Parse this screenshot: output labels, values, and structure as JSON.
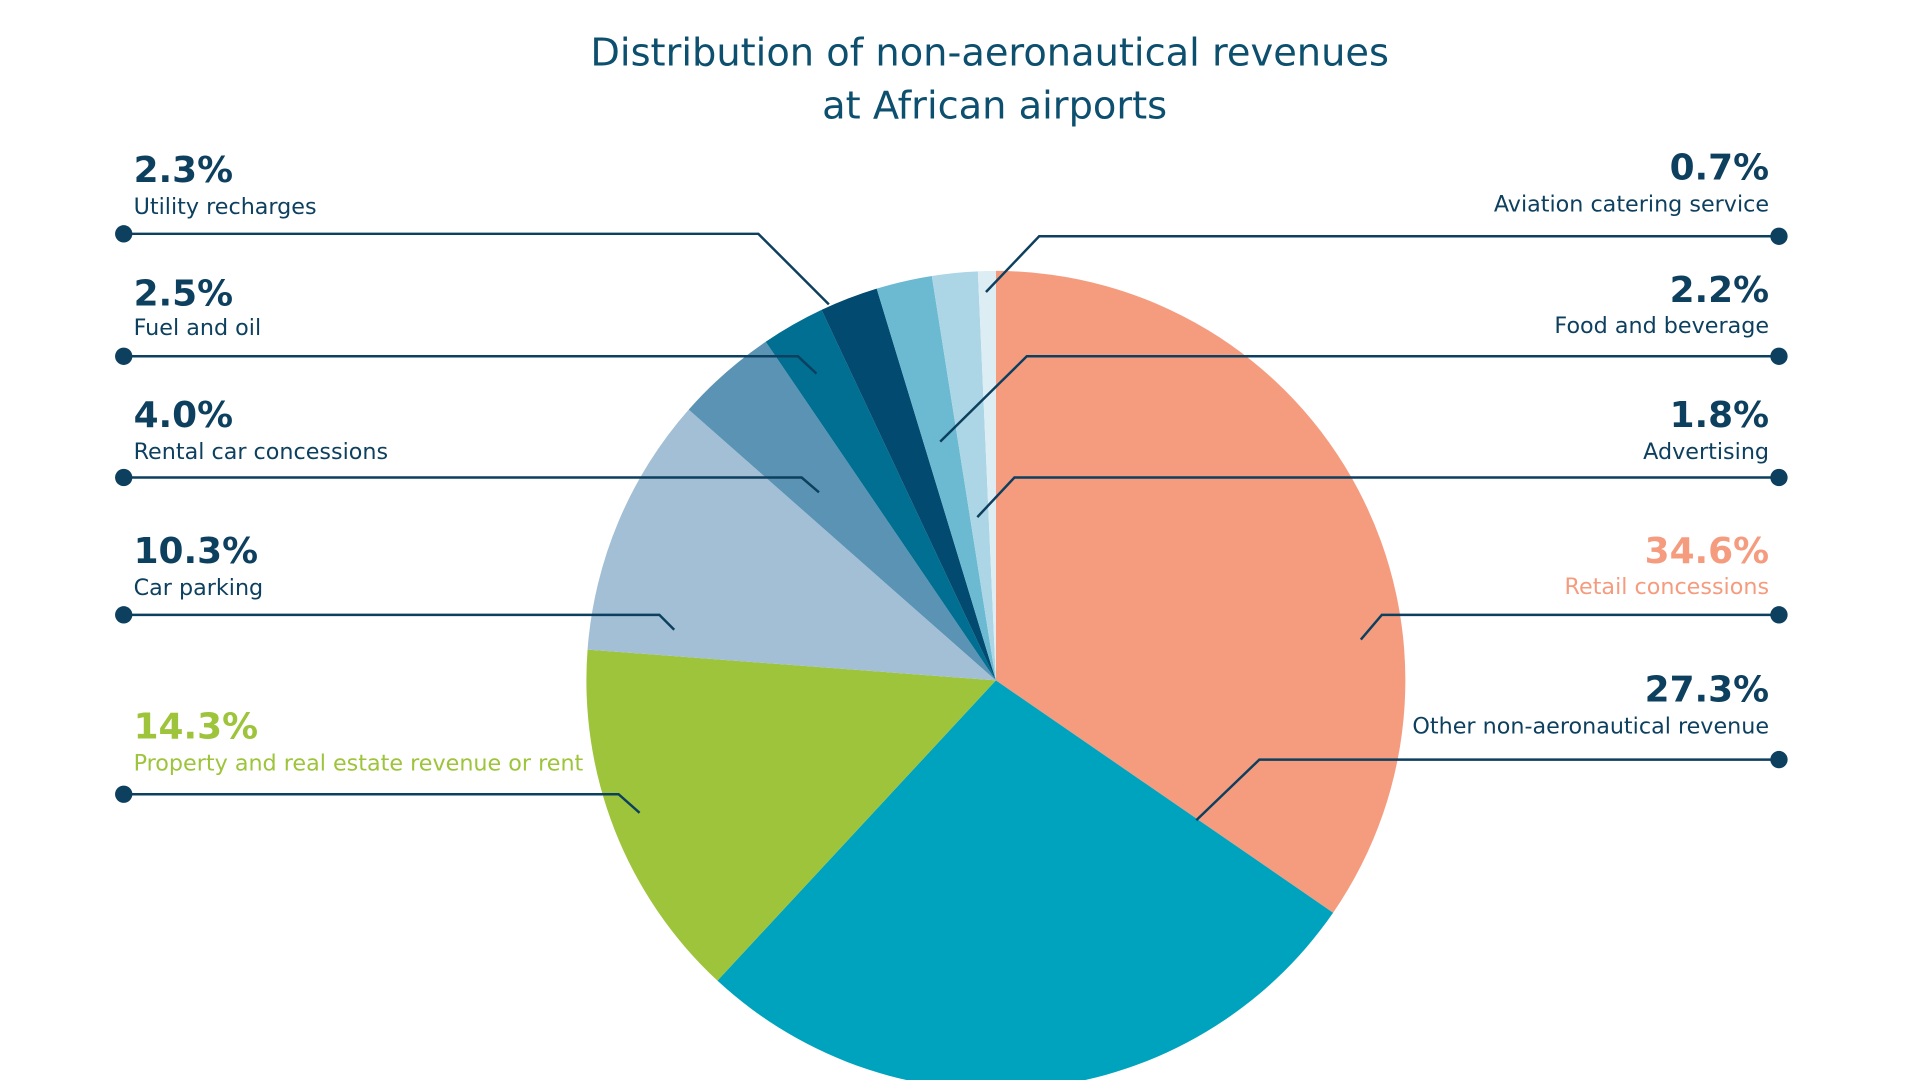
{
  "chart_data": {
    "type": "pie",
    "title_line1": "Distribution of non-aeronautical revenues",
    "title_line2": "at African airports",
    "slices": [
      {
        "label": "Retail concessions",
        "value": 34.6,
        "pct": "34.6%",
        "color": "#f59c7f",
        "text_color": "#f59c7f"
      },
      {
        "label": "Other non-aeronautical revenue",
        "value": 27.3,
        "pct": "27.3%",
        "color": "#00a3be",
        "text_color": "#0d3f5f"
      },
      {
        "label": "Property and real estate revenue or rent",
        "value": 14.3,
        "pct": "14.3%",
        "color": "#9dc43b",
        "text_color": "#9dc43b"
      },
      {
        "label": "Car parking",
        "value": 10.3,
        "pct": "10.3%",
        "color": "#a2bfd5",
        "text_color": "#0d3f5f"
      },
      {
        "label": "Rental car concessions",
        "value": 4.0,
        "pct": "4.0%",
        "color": "#5a93b3",
        "text_color": "#0d3f5f"
      },
      {
        "label": "Fuel and oil",
        "value": 2.5,
        "pct": "2.5%",
        "color": "#016f91",
        "text_color": "#0d3f5f"
      },
      {
        "label": "Utility recharges",
        "value": 2.3,
        "pct": "2.3%",
        "color": "#024a70",
        "text_color": "#0d3f5f"
      },
      {
        "label": "Food and beverage",
        "value": 2.2,
        "pct": "2.2%",
        "color": "#6bbad2",
        "text_color": "#0d3f5f"
      },
      {
        "label": "Advertising",
        "value": 1.8,
        "pct": "1.8%",
        "color": "#acd6e5",
        "text_color": "#0d3f5f"
      },
      {
        "label": "Aviation catering service",
        "value": 0.7,
        "pct": "0.7%",
        "color": "#dcedf4",
        "text_color": "#0d3f5f"
      }
    ],
    "legend": "leader-line labels"
  }
}
